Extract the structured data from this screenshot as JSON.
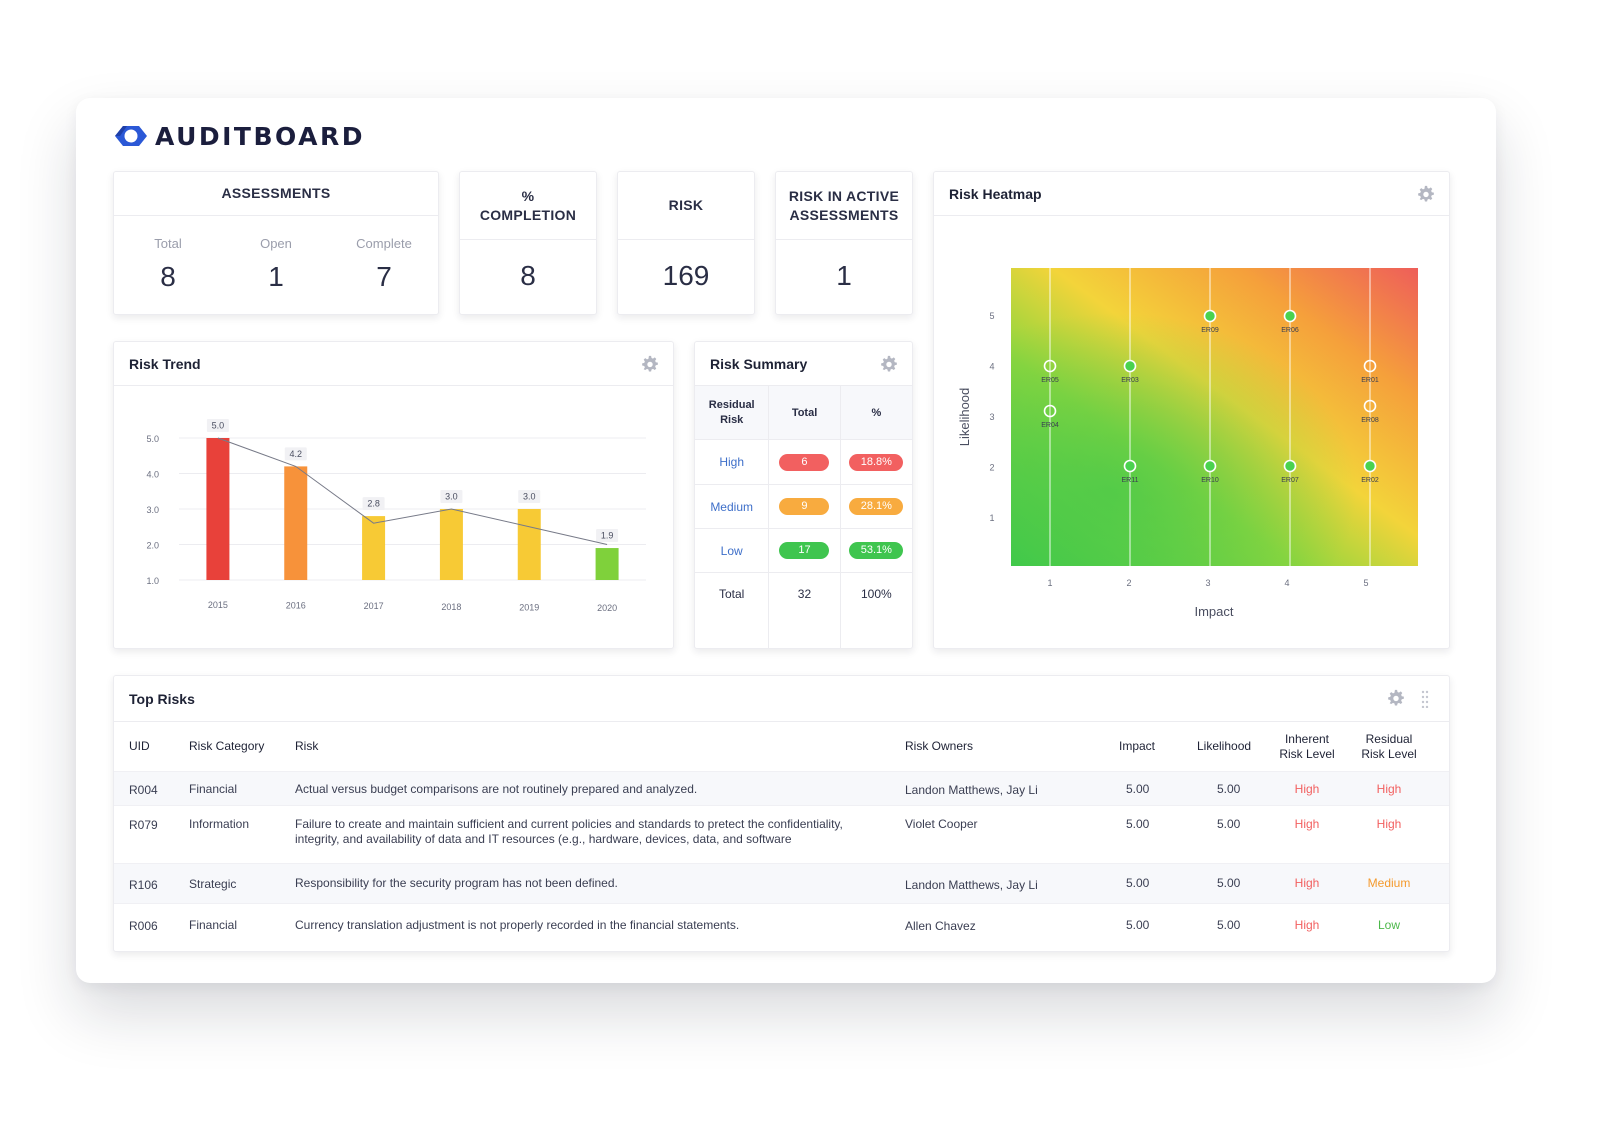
{
  "brand": {
    "name": "AUDITBOARD",
    "logo_color": "#2b58d6"
  },
  "kpis": {
    "assessments": {
      "title": "ASSESSMENTS",
      "cols": [
        {
          "label": "Total",
          "value": "8"
        },
        {
          "label": "Open",
          "value": "1"
        },
        {
          "label": "Complete",
          "value": "7"
        }
      ]
    },
    "completion": {
      "title_line1": "%",
      "title_line2": "COMPLETION",
      "value": "8"
    },
    "risk": {
      "title": "RISK",
      "value": "169"
    },
    "active": {
      "title_line1": "RISK IN ACTIVE",
      "title_line2": "ASSESSMENTS",
      "value": "1"
    }
  },
  "risk_trend": {
    "title": "Risk Trend",
    "chart_data": {
      "type": "bar",
      "categories": [
        "2015",
        "2016",
        "2017",
        "2018",
        "2019",
        "2020"
      ],
      "values": [
        5.0,
        4.2,
        2.8,
        3.0,
        3.0,
        1.9
      ],
      "data_labels": [
        "5.0",
        "4.2",
        "2.8",
        "3.0",
        "3.0",
        "1.9"
      ],
      "bar_colors": [
        "#e8413a",
        "#f7923a",
        "#f7ca35",
        "#f7ca35",
        "#f7ca35",
        "#7fd13b"
      ],
      "line_values": [
        5.0,
        4.2,
        2.6,
        3.0,
        2.5,
        2.0
      ],
      "y_ticks": [
        "1.0",
        "2.0",
        "3.0",
        "4.0",
        "5.0"
      ],
      "ylim": [
        1.0,
        5.0
      ],
      "grid": true
    }
  },
  "risk_summary": {
    "title": "Risk Summary",
    "headers": {
      "level": "Residual Risk",
      "total": "Total",
      "pct": "%"
    },
    "rows": [
      {
        "level": "High",
        "total": "6",
        "pct": "18.8%"
      },
      {
        "level": "Medium",
        "total": "9",
        "pct": "28.1%"
      },
      {
        "level": "Low",
        "total": "17",
        "pct": "53.1%"
      }
    ],
    "total_row": {
      "label": "Total",
      "total": "32",
      "pct": "100%"
    }
  },
  "heatmap": {
    "title": "Risk Heatmap",
    "chart_data": {
      "type": "scatter",
      "xlabel": "Impact",
      "ylabel": "Likelihood",
      "x_ticks": [
        "1",
        "2",
        "3",
        "4",
        "5"
      ],
      "y_ticks": [
        "1",
        "2",
        "3",
        "4",
        "5"
      ],
      "xlim": [
        0.5,
        5.5
      ],
      "ylim": [
        0.5,
        5.5
      ],
      "points": [
        {
          "label": "ER05",
          "x": 1,
          "y": 4,
          "style": "hollow"
        },
        {
          "label": "ER04",
          "x": 1,
          "y": 3.1,
          "style": "hollow"
        },
        {
          "label": "ER03",
          "x": 2,
          "y": 4,
          "style": "filled"
        },
        {
          "label": "ER11",
          "x": 2,
          "y": 2,
          "style": "filled"
        },
        {
          "label": "ER09",
          "x": 3,
          "y": 5,
          "style": "filled"
        },
        {
          "label": "ER10",
          "x": 3,
          "y": 2,
          "style": "filled"
        },
        {
          "label": "ER06",
          "x": 4,
          "y": 5,
          "style": "filled"
        },
        {
          "label": "ER07",
          "x": 4,
          "y": 2,
          "style": "filled"
        },
        {
          "label": "ER01",
          "x": 5,
          "y": 4,
          "style": "orange"
        },
        {
          "label": "ER08",
          "x": 5,
          "y": 3.2,
          "style": "orange"
        },
        {
          "label": "ER02",
          "x": 5,
          "y": 2,
          "style": "filled"
        }
      ]
    }
  },
  "top_risks": {
    "title": "Top Risks",
    "headers": {
      "uid": "UID",
      "category": "Risk Category",
      "risk": "Risk",
      "owners": "Risk Owners",
      "impact": "Impact",
      "likelihood": "Likelihood",
      "inherent_1": "Inherent",
      "inherent_2": "Risk Level",
      "residual_1": "Residual",
      "residual_2": "Risk Level"
    },
    "rows": [
      {
        "uid": "R004",
        "category": "Financial",
        "risk": "Actual versus budget comparisons are not routinely prepared and analyzed.",
        "owners": "Landon Matthews, Jay Li",
        "impact": "5.00",
        "likelihood": "5.00",
        "inherent": "High",
        "residual": "High"
      },
      {
        "uid": "R079",
        "category": "Information",
        "risk": "Failure to create and maintain sufficient and current policies and standards to pretect the confidentiality, integrity, and availability of data and IT resources (e.g., hardware, devices, data, and software",
        "owners": "Violet Cooper",
        "impact": "5.00",
        "likelihood": "5.00",
        "inherent": "High",
        "residual": "High"
      },
      {
        "uid": "R106",
        "category": "Strategic",
        "risk": "Responsibility for the security program has not been defined.",
        "owners": "Landon Matthews, Jay Li",
        "impact": "5.00",
        "likelihood": "5.00",
        "inherent": "High",
        "residual": "Medium"
      },
      {
        "uid": "R006",
        "category": "Financial",
        "risk": "Currency translation adjustment is not properly recorded in the financial statements.",
        "owners": "Allen Chavez",
        "impact": "5.00",
        "likelihood": "5.00",
        "inherent": "High",
        "residual": "Low"
      }
    ]
  }
}
